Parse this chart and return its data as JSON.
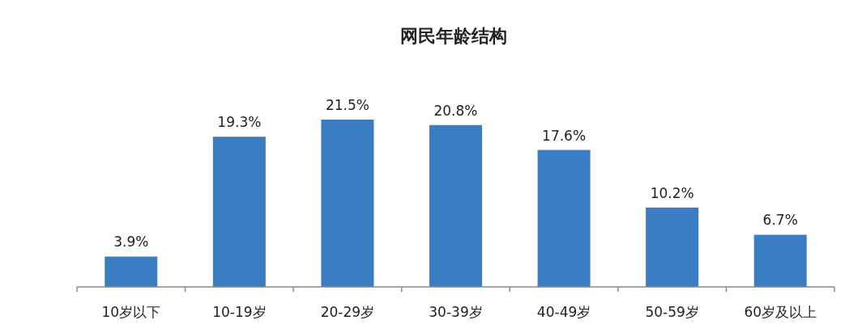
{
  "chart_data": {
    "type": "bar",
    "title": "网民年龄结构",
    "categories": [
      "10岁以下",
      "10-19岁",
      "20-29岁",
      "30-39岁",
      "40-49岁",
      "50-59岁",
      "60岁及以上"
    ],
    "values": [
      3.9,
      19.3,
      21.5,
      20.8,
      17.6,
      10.2,
      6.7
    ],
    "value_labels": [
      "3.9%",
      "19.3%",
      "21.5%",
      "20.8%",
      "17.6%",
      "10.2%",
      "6.7%"
    ],
    "color": "#3b7dc4"
  }
}
